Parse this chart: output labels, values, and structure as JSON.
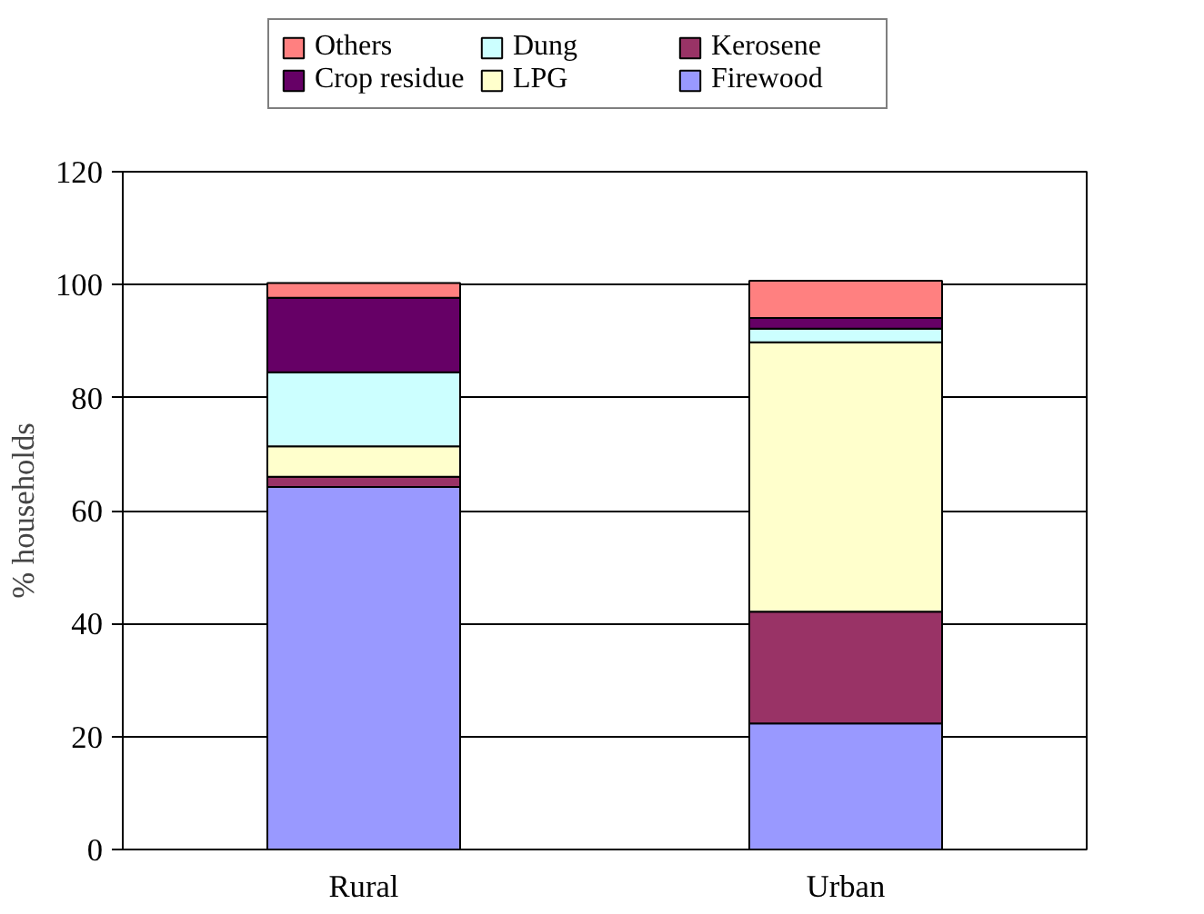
{
  "chart_data": {
    "type": "bar",
    "stacked": true,
    "ylabel": "% households",
    "categories": [
      "Rural",
      "Urban"
    ],
    "ylim": [
      0,
      120
    ],
    "yticks": [
      0,
      20,
      40,
      60,
      80,
      100,
      120
    ],
    "grid": "y",
    "legend": "top",
    "series": [
      {
        "name": "Firewood",
        "color": "#9999ff",
        "values": [
          64.2,
          22.3
        ]
      },
      {
        "name": "Kerosene",
        "color": "#993366",
        "values": [
          1.8,
          19.8
        ]
      },
      {
        "name": "LPG",
        "color": "#ffffcc",
        "values": [
          5.4,
          47.7
        ]
      },
      {
        "name": "Dung",
        "color": "#ccffff",
        "values": [
          13.1,
          2.4
        ]
      },
      {
        "name": "Crop residue",
        "color": "#660066",
        "values": [
          13.2,
          1.9
        ]
      },
      {
        "name": "Others",
        "color": "#ff8080",
        "values": [
          2.6,
          6.6
        ]
      }
    ]
  }
}
